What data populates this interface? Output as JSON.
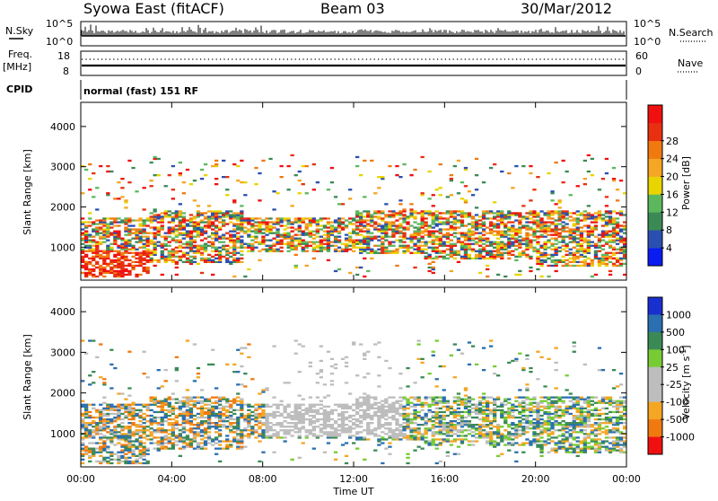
{
  "header": {
    "station": "Syowa East (fitACF)",
    "beam": "Beam 03",
    "date": "30/Mar/2012"
  },
  "top_panels": {
    "nsky_label": "N.Sky",
    "nsky_ticks": [
      "10^5",
      "10^0"
    ],
    "nsearch_label": "N.Search",
    "nsearch_ticks": [
      "10^5",
      "10^0"
    ],
    "freq_label": "Freq.",
    "freq_unit": "[MHz]",
    "freq_ticks": [
      "18",
      "8"
    ],
    "nave_label": "Nave",
    "nave_ticks": [
      "60",
      "0"
    ],
    "cpid_label": "CPID",
    "cpid_text": "normal (fast) 151 RF"
  },
  "colors": {
    "power": [
      "#0a1cf0",
      "#2a4fb0",
      "#3b8a55",
      "#5cb85c",
      "#e8d400",
      "#f5a623",
      "#f07a10",
      "#e83010",
      "#f01010"
    ],
    "velocity": [
      "#f01010",
      "#f07a10",
      "#f5a623",
      "#bdbdbd",
      "#bdbdbd",
      "#77cc33",
      "#3b8a55",
      "#2a6fb0",
      "#1a2fd0"
    ]
  },
  "chart_data": [
    {
      "type": "heatmap",
      "panel": "power",
      "xlabel": "",
      "ylabel": "Slant Range [km]",
      "yticks": [
        "1000",
        "2000",
        "3000",
        "4000"
      ],
      "ylim": [
        180,
        4600
      ],
      "colorbar_label": "Power [dB]",
      "colorbar_ticks": [
        "4",
        "8",
        "12",
        "16",
        "20",
        "24",
        "28"
      ],
      "clim": [
        0,
        30
      ]
    },
    {
      "type": "heatmap",
      "panel": "velocity",
      "xlabel": "Time UT",
      "ylabel": "Slant Range [km]",
      "yticks": [
        "1000",
        "2000",
        "3000",
        "4000"
      ],
      "ylim": [
        180,
        4600
      ],
      "xticks": [
        "00:00",
        "04:00",
        "08:00",
        "12:00",
        "16:00",
        "20:00",
        "00:00"
      ],
      "colorbar_label": "Velocity [m s",
      "colorbar_label_sup": "-1",
      "colorbar_label_close": "]",
      "colorbar_ticks": [
        "1000",
        "500",
        "100",
        "25",
        "-25",
        "-100",
        "-500",
        "-1000"
      ]
    }
  ]
}
